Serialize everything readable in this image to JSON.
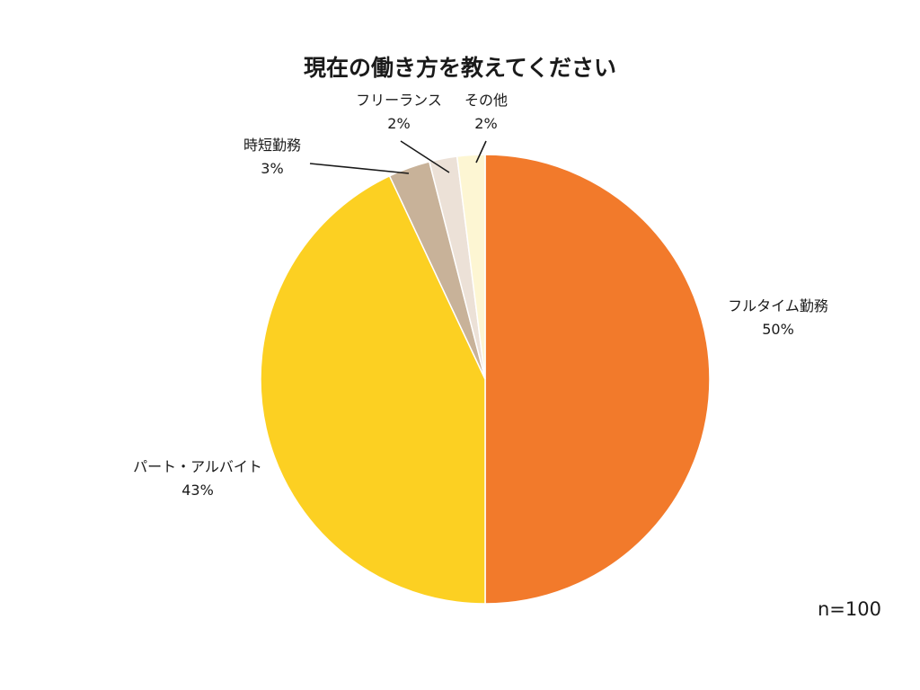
{
  "chart_data": {
    "type": "pie",
    "title": "現在の働き方を教えてください",
    "sample_size": "n=100",
    "slices": [
      {
        "label": "フルタイム勤務",
        "value": 50,
        "pct_label": "50%",
        "color": "#f27a2b"
      },
      {
        "label": "パート・アルバイト",
        "value": 43,
        "pct_label": "43%",
        "color": "#fcd022"
      },
      {
        "label": "時短勤務",
        "value": 3,
        "pct_label": "3%",
        "color": "#c8b299"
      },
      {
        "label": "フリーランス",
        "value": 2,
        "pct_label": "2%",
        "color": "#ece1d7"
      },
      {
        "label": "その他",
        "value": 2,
        "pct_label": "2%",
        "color": "#fdf6d3"
      }
    ],
    "start_angle": "12 o'clock",
    "direction": "clockwise",
    "legend": "none (labels beside slices)"
  }
}
